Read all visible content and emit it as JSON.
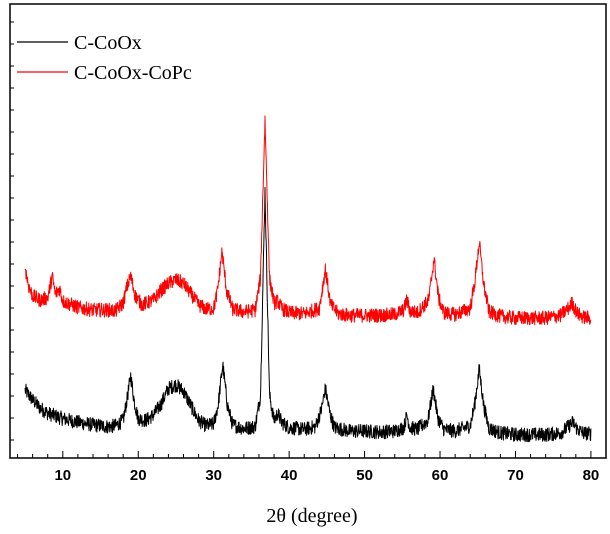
{
  "chart_data": {
    "type": "line",
    "title": "",
    "xlabel": "2θ (degree)",
    "ylabel": "",
    "xlim": [
      3,
      82
    ],
    "x_ticks": [
      10,
      20,
      30,
      40,
      50,
      60,
      70,
      80
    ],
    "y_ticks_shown": false,
    "grid": false,
    "legend_position": "top-left",
    "series": [
      {
        "name": "C-CoOx",
        "color": "#000000",
        "baseline_offset": 0,
        "points": [
          [
            5,
            0.56
          ],
          [
            6,
            0.45
          ],
          [
            7,
            0.36
          ],
          [
            8,
            0.3
          ],
          [
            9,
            0.27
          ],
          [
            10,
            0.24
          ],
          [
            12,
            0.2
          ],
          [
            14,
            0.17
          ],
          [
            16,
            0.15
          ],
          [
            17,
            0.16
          ],
          [
            18,
            0.22
          ],
          [
            18.5,
            0.45
          ],
          [
            19,
            0.72
          ],
          [
            19.5,
            0.42
          ],
          [
            20,
            0.24
          ],
          [
            21,
            0.22
          ],
          [
            22,
            0.28
          ],
          [
            23,
            0.4
          ],
          [
            24,
            0.58
          ],
          [
            25,
            0.62
          ],
          [
            26,
            0.55
          ],
          [
            27,
            0.38
          ],
          [
            28,
            0.22
          ],
          [
            29,
            0.16
          ],
          [
            30,
            0.18
          ],
          [
            30.6,
            0.4
          ],
          [
            31.2,
            0.85
          ],
          [
            31.8,
            0.4
          ],
          [
            32.5,
            0.17
          ],
          [
            34,
            0.13
          ],
          [
            35.5,
            0.15
          ],
          [
            36.2,
            0.5
          ],
          [
            36.8,
            2.8
          ],
          [
            37.4,
            0.5
          ],
          [
            38,
            0.22
          ],
          [
            38.5,
            0.3
          ],
          [
            39,
            0.2
          ],
          [
            40,
            0.14
          ],
          [
            42,
            0.12
          ],
          [
            43.5,
            0.15
          ],
          [
            44.3,
            0.35
          ],
          [
            44.8,
            0.58
          ],
          [
            45.4,
            0.3
          ],
          [
            46,
            0.14
          ],
          [
            48,
            0.1
          ],
          [
            50,
            0.1
          ],
          [
            52,
            0.09
          ],
          [
            54,
            0.1
          ],
          [
            55.2,
            0.14
          ],
          [
            55.6,
            0.28
          ],
          [
            56,
            0.14
          ],
          [
            57,
            0.12
          ],
          [
            58.4,
            0.22
          ],
          [
            59.1,
            0.58
          ],
          [
            59.7,
            0.25
          ],
          [
            60.5,
            0.12
          ],
          [
            62,
            0.1
          ],
          [
            64,
            0.16
          ],
          [
            64.6,
            0.4
          ],
          [
            65.2,
            0.8
          ],
          [
            65.8,
            0.38
          ],
          [
            66.5,
            0.13
          ],
          [
            68,
            0.08
          ],
          [
            70,
            0.06
          ],
          [
            72,
            0.06
          ],
          [
            74,
            0.06
          ],
          [
            76,
            0.08
          ],
          [
            77,
            0.15
          ],
          [
            77.6,
            0.2
          ],
          [
            78.2,
            0.12
          ],
          [
            79,
            0.08
          ],
          [
            80,
            0.07
          ]
        ]
      },
      {
        "name": "C-CoOx-CoPc",
        "color": "#ff0000",
        "baseline_offset": 1.32,
        "points": [
          [
            5,
            0.62
          ],
          [
            5.5,
            0.4
          ],
          [
            6,
            0.3
          ],
          [
            7,
            0.25
          ],
          [
            8,
            0.28
          ],
          [
            8.6,
            0.52
          ],
          [
            9,
            0.32
          ],
          [
            9.6,
            0.38
          ],
          [
            10,
            0.24
          ],
          [
            12,
            0.17
          ],
          [
            14,
            0.14
          ],
          [
            16,
            0.14
          ],
          [
            17,
            0.13
          ],
          [
            18,
            0.22
          ],
          [
            18.5,
            0.4
          ],
          [
            19,
            0.52
          ],
          [
            19.6,
            0.3
          ],
          [
            20.5,
            0.2
          ],
          [
            22,
            0.25
          ],
          [
            23,
            0.36
          ],
          [
            24,
            0.44
          ],
          [
            25,
            0.48
          ],
          [
            26,
            0.44
          ],
          [
            27,
            0.32
          ],
          [
            28,
            0.2
          ],
          [
            29,
            0.15
          ],
          [
            30,
            0.16
          ],
          [
            30.5,
            0.35
          ],
          [
            31.1,
            0.8
          ],
          [
            31.7,
            0.36
          ],
          [
            32.5,
            0.15
          ],
          [
            34,
            0.12
          ],
          [
            35.5,
            0.14
          ],
          [
            36.2,
            0.5
          ],
          [
            36.8,
            2.28
          ],
          [
            37.4,
            0.5
          ],
          [
            38,
            0.22
          ],
          [
            38.5,
            0.24
          ],
          [
            39,
            0.16
          ],
          [
            40,
            0.11
          ],
          [
            42,
            0.1
          ],
          [
            44,
            0.16
          ],
          [
            44.8,
            0.6
          ],
          [
            45.5,
            0.2
          ],
          [
            46.5,
            0.1
          ],
          [
            48,
            0.08
          ],
          [
            50,
            0.08
          ],
          [
            52,
            0.08
          ],
          [
            54,
            0.09
          ],
          [
            55.2,
            0.14
          ],
          [
            55.6,
            0.26
          ],
          [
            56,
            0.13
          ],
          [
            57,
            0.11
          ],
          [
            58.5,
            0.25
          ],
          [
            59.2,
            0.72
          ],
          [
            59.8,
            0.28
          ],
          [
            60.5,
            0.11
          ],
          [
            62,
            0.09
          ],
          [
            64,
            0.16
          ],
          [
            64.6,
            0.45
          ],
          [
            65.2,
            0.9
          ],
          [
            65.8,
            0.42
          ],
          [
            66.5,
            0.12
          ],
          [
            68,
            0.07
          ],
          [
            70,
            0.05
          ],
          [
            72,
            0.05
          ],
          [
            74,
            0.05
          ],
          [
            76,
            0.08
          ],
          [
            77,
            0.16
          ],
          [
            77.5,
            0.22
          ],
          [
            78.2,
            0.1
          ],
          [
            79,
            0.06
          ],
          [
            80,
            0.05
          ]
        ]
      }
    ]
  }
}
